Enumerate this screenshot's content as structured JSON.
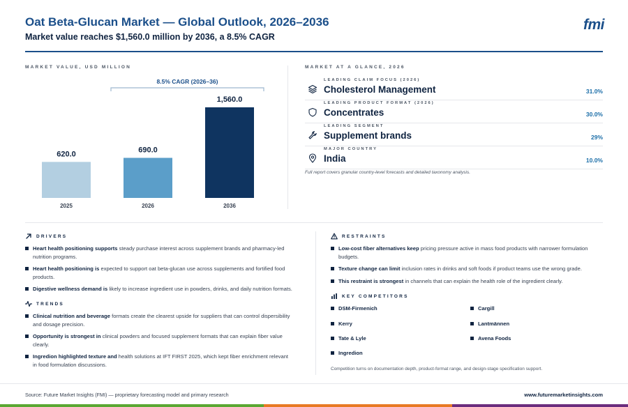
{
  "header": {
    "title": "Oat Beta-Glucan Market — Global Outlook, 2026–2036",
    "subtitle": "Market value reaches $1,560.0 million by 2036, a 8.5% CAGR",
    "logo": "fmi"
  },
  "chart_section": {
    "label": "MARKET VALUE, USD MILLION"
  },
  "chart_data": {
    "type": "bar",
    "categories": [
      "2025",
      "2026",
      "2036"
    ],
    "values": [
      620.0,
      690.0,
      1560.0
    ],
    "value_labels": [
      "620.0",
      "690.0",
      "1,560.0"
    ],
    "colors": [
      "#b3cfe1",
      "#5b9ec9",
      "#0f3460"
    ],
    "annotation": "8.5% CAGR (2026–36)",
    "ylim": [
      0,
      1560
    ]
  },
  "glance": {
    "label": "MARKET AT A GLANCE, 2026",
    "rows": [
      {
        "label": "LEADING CLAIM FOCUS (2026)",
        "value": "Cholesterol Management",
        "pct": "31.0%",
        "icon": "layers-icon"
      },
      {
        "label": "LEADING PRODUCT FORMAT (2026)",
        "value": "Concentrates",
        "pct": "30.0%",
        "icon": "shield-icon"
      },
      {
        "label": "LEADING SEGMENT",
        "value": "Supplement brands",
        "pct": "29%",
        "icon": "wrench-icon"
      },
      {
        "label": "MAJOR COUNTRY",
        "value": "India",
        "pct": "10.0%",
        "icon": "map-pin-icon"
      }
    ],
    "note": "Full report covers granular country-level forecasts and detailed taxonomy analysis."
  },
  "drivers": {
    "label": "DRIVERS",
    "items": [
      {
        "bold": "Heart health positioning supports",
        "rest": " steady purchase interest across supplement brands and pharmacy-led nutrition programs."
      },
      {
        "bold": "Heart health positioning is",
        "rest": " expected to support oat beta-glucan use across supplements and fortified food products."
      },
      {
        "bold": "Digestive wellness demand is",
        "rest": " likely to increase ingredient use in powders, drinks, and daily nutrition formats."
      }
    ]
  },
  "trends": {
    "label": "TRENDS",
    "items": [
      {
        "bold": "Clinical nutrition and beverage",
        "rest": " formats create the clearest upside for suppliers that can control dispersibility and dosage precision."
      },
      {
        "bold": "Opportunity is strongest in",
        "rest": " clinical powders and focused supplement formats that can explain fiber value clearly."
      },
      {
        "bold": "Ingredion highlighted texture and",
        "rest": " health solutions at IFT FIRST 2025, which kept fiber enrichment relevant in food formulation discussions."
      }
    ]
  },
  "restraints": {
    "label": "RESTRAINTS",
    "items": [
      {
        "bold": "Low-cost fiber alternatives keep",
        "rest": " pricing pressure active in mass food products with narrower formulation budgets."
      },
      {
        "bold": "Texture change can limit",
        "rest": " inclusion rates in drinks and soft foods if product teams use the wrong grade."
      },
      {
        "bold": "This restraint is strongest",
        "rest": " in channels that can explain the health role of the ingredient clearly."
      }
    ]
  },
  "competitors": {
    "label": "KEY COMPETITORS",
    "left": [
      "DSM-Firmenich",
      "Kerry",
      "Tate & Lyle",
      "Ingredion"
    ],
    "right": [
      "Cargill",
      "Lantmännen",
      "Avena Foods"
    ],
    "note": "Competition turns on documentation depth, product-format range, and design-stage specification support."
  },
  "footer": {
    "source": "Source: Future Market Insights (FMI) — proprietary forecasting model and primary research",
    "url": "www.futuremarketinsights.com"
  },
  "colors": {
    "brand": "#1b4f8a",
    "navy": "#0f2340",
    "stripe": [
      "#5aa832",
      "#e87a24",
      "#6b2d7e"
    ]
  }
}
